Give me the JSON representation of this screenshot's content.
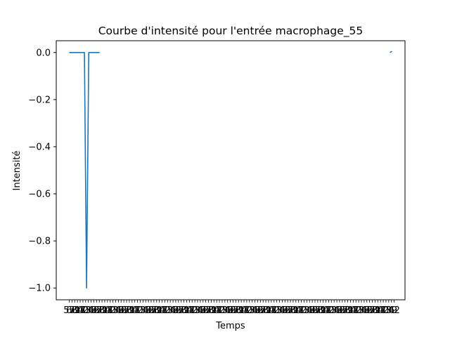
{
  "chart_data": {
    "type": "line",
    "title": "Courbe d'intensité pour l'entrée macrophage_55",
    "xlabel": "Temps",
    "ylabel": "Intensité",
    "ylim": [
      -1.05,
      0.05
    ],
    "y_ticks": [
      0.0,
      -0.2,
      -0.4,
      -0.6,
      -0.8,
      -1.0
    ],
    "y_tick_labels": [
      "0.0",
      "−0.2",
      "−0.4",
      "−0.6",
      "−0.8",
      "−1.0"
    ],
    "x_tick_count": 120,
    "x_tick_labels_note": "dense overlapping labels, unreadable",
    "grid": false,
    "legend": "none",
    "colors": {
      "series": "#1f77b4"
    },
    "series": [
      {
        "segments": [
          {
            "x": [
              0,
              1,
              2,
              3,
              4,
              5,
              6,
              7,
              8,
              9,
              10,
              11,
              12,
              13,
              14
            ],
            "y": [
              0,
              0,
              0,
              0,
              0,
              0,
              0,
              0,
              -1.0,
              0,
              0,
              0,
              0,
              0,
              0
            ]
          },
          {
            "x": [
              148,
              149
            ],
            "y": [
              0,
              0.005
            ]
          }
        ]
      }
    ],
    "xlim": [
      -6,
      155
    ]
  }
}
